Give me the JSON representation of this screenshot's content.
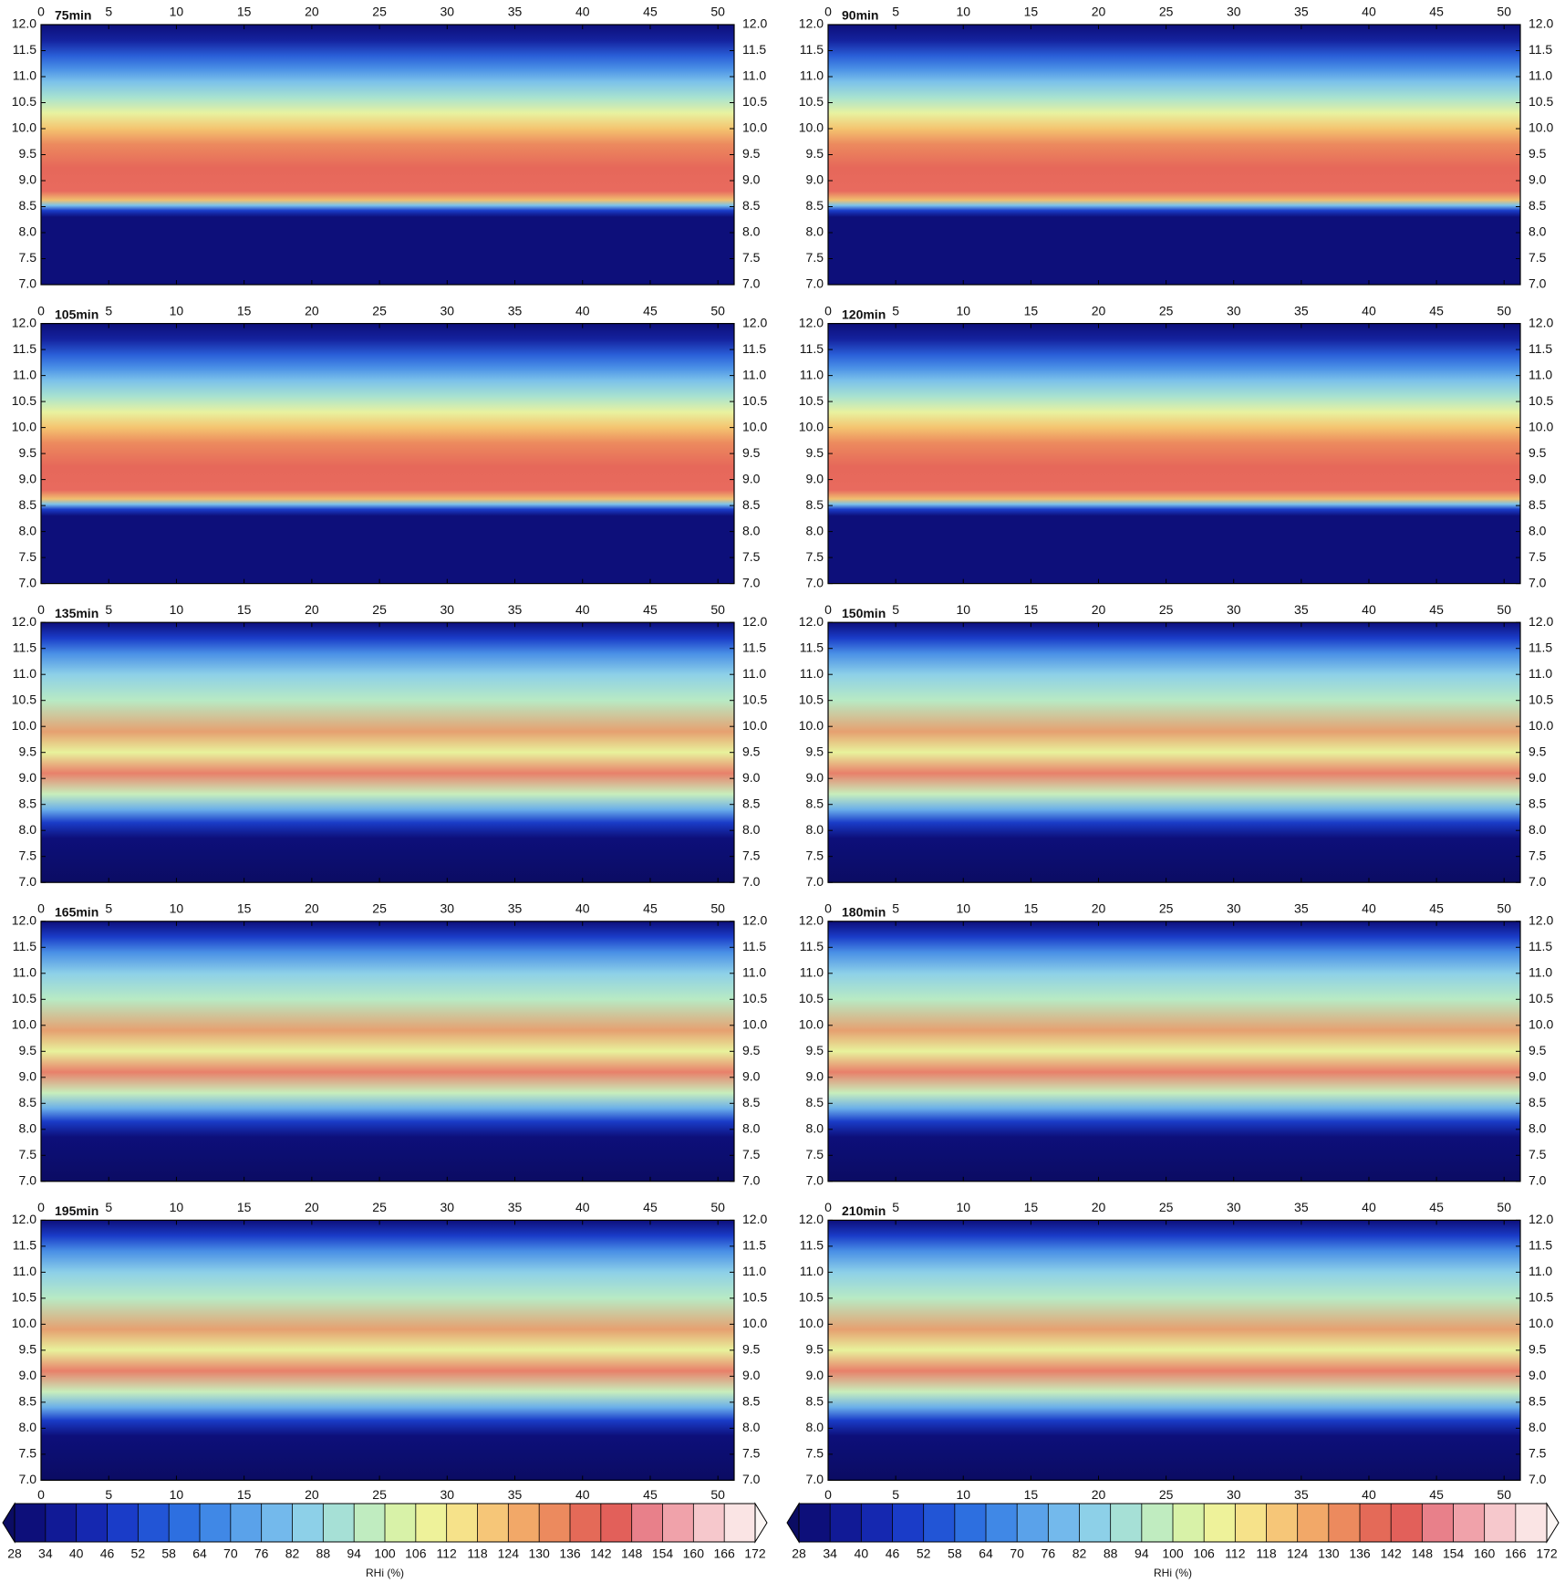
{
  "chart_data": [
    {
      "type": "contour",
      "title": "75min",
      "xlim": [
        0,
        51.2
      ],
      "ylim": [
        7,
        12
      ],
      "xticks": [
        0,
        5,
        10,
        15,
        20,
        25,
        30,
        35,
        40,
        45,
        50
      ],
      "yticks": [
        {
          "value": 7,
          "label": "7.0"
        },
        {
          "value": 7.5,
          "label": "7.5"
        },
        {
          "value": 8,
          "label": "8.0"
        },
        {
          "value": 8.5,
          "label": "8.5"
        },
        {
          "value": 9,
          "label": "9.0"
        },
        {
          "value": 9.5,
          "label": "9.5"
        },
        {
          "value": 10,
          "label": "10.0"
        },
        {
          "value": 10.5,
          "label": "10.5"
        },
        {
          "value": 11,
          "label": "11.0"
        },
        {
          "value": 11.5,
          "label": "11.5"
        },
        {
          "value": 12,
          "label": "12.0"
        }
      ]
    },
    {
      "type": "contour",
      "title": "90min",
      "xlim": [
        0,
        51.2
      ],
      "ylim": [
        7,
        12
      ],
      "xticks": [
        0,
        5,
        10,
        15,
        20,
        25,
        30,
        35,
        40,
        45,
        50
      ],
      "yticks": [
        {
          "value": 7,
          "label": "7.0"
        },
        {
          "value": 7.5,
          "label": "7.5"
        },
        {
          "value": 8,
          "label": "8.0"
        },
        {
          "value": 8.5,
          "label": "8.5"
        },
        {
          "value": 9,
          "label": "9.0"
        },
        {
          "value": 9.5,
          "label": "9.5"
        },
        {
          "value": 10,
          "label": "10.0"
        },
        {
          "value": 10.5,
          "label": "10.5"
        },
        {
          "value": 11,
          "label": "11.0"
        },
        {
          "value": 11.5,
          "label": "11.5"
        },
        {
          "value": 12,
          "label": "12.0"
        }
      ]
    },
    {
      "type": "contour",
      "title": "105min",
      "xlim": [
        0,
        51.2
      ],
      "ylim": [
        7,
        12
      ],
      "xticks": [
        0,
        5,
        10,
        15,
        20,
        25,
        30,
        35,
        40,
        45,
        50
      ],
      "yticks": [
        {
          "value": 7,
          "label": "7.0"
        },
        {
          "value": 7.5,
          "label": "7.5"
        },
        {
          "value": 8,
          "label": "8.0"
        },
        {
          "value": 8.5,
          "label": "8.5"
        },
        {
          "value": 9,
          "label": "9.0"
        },
        {
          "value": 9.5,
          "label": "9.5"
        },
        {
          "value": 10,
          "label": "10.0"
        },
        {
          "value": 10.5,
          "label": "10.5"
        },
        {
          "value": 11,
          "label": "11.0"
        },
        {
          "value": 11.5,
          "label": "11.5"
        },
        {
          "value": 12,
          "label": "12.0"
        }
      ]
    },
    {
      "type": "contour",
      "title": "120min",
      "xlim": [
        0,
        51.2
      ],
      "ylim": [
        7,
        12
      ],
      "xticks": [
        0,
        5,
        10,
        15,
        20,
        25,
        30,
        35,
        40,
        45,
        50
      ],
      "yticks": [
        {
          "value": 7,
          "label": "7.0"
        },
        {
          "value": 7.5,
          "label": "7.5"
        },
        {
          "value": 8,
          "label": "8.0"
        },
        {
          "value": 8.5,
          "label": "8.5"
        },
        {
          "value": 9,
          "label": "9.0"
        },
        {
          "value": 9.5,
          "label": "9.5"
        },
        {
          "value": 10,
          "label": "10.0"
        },
        {
          "value": 10.5,
          "label": "10.5"
        },
        {
          "value": 11,
          "label": "11.0"
        },
        {
          "value": 11.5,
          "label": "11.5"
        },
        {
          "value": 12,
          "label": "12.0"
        }
      ]
    },
    {
      "type": "contour",
      "title": "135min",
      "xlim": [
        0,
        51.2
      ],
      "ylim": [
        7,
        12
      ],
      "xticks": [
        0,
        5,
        10,
        15,
        20,
        25,
        30,
        35,
        40,
        45,
        50
      ],
      "yticks": [
        {
          "value": 7,
          "label": "7.0"
        },
        {
          "value": 7.5,
          "label": "7.5"
        },
        {
          "value": 8,
          "label": "8.0"
        },
        {
          "value": 8.5,
          "label": "8.5"
        },
        {
          "value": 9,
          "label": "9.0"
        },
        {
          "value": 9.5,
          "label": "9.5"
        },
        {
          "value": 10,
          "label": "10.0"
        },
        {
          "value": 10.5,
          "label": "10.5"
        },
        {
          "value": 11,
          "label": "11.0"
        },
        {
          "value": 11.5,
          "label": "11.5"
        },
        {
          "value": 12,
          "label": "12.0"
        }
      ]
    },
    {
      "type": "contour",
      "title": "150min",
      "xlim": [
        0,
        51.2
      ],
      "ylim": [
        7,
        12
      ],
      "xticks": [
        0,
        5,
        10,
        15,
        20,
        25,
        30,
        35,
        40,
        45,
        50
      ],
      "yticks": [
        {
          "value": 7,
          "label": "7.0"
        },
        {
          "value": 7.5,
          "label": "7.5"
        },
        {
          "value": 8,
          "label": "8.0"
        },
        {
          "value": 8.5,
          "label": "8.5"
        },
        {
          "value": 9,
          "label": "9.0"
        },
        {
          "value": 9.5,
          "label": "9.5"
        },
        {
          "value": 10,
          "label": "10.0"
        },
        {
          "value": 10.5,
          "label": "10.5"
        },
        {
          "value": 11,
          "label": "11.0"
        },
        {
          "value": 11.5,
          "label": "11.5"
        },
        {
          "value": 12,
          "label": "12.0"
        }
      ]
    },
    {
      "type": "contour",
      "title": "165min",
      "xlim": [
        0,
        51.2
      ],
      "ylim": [
        7,
        12
      ],
      "xticks": [
        0,
        5,
        10,
        15,
        20,
        25,
        30,
        35,
        40,
        45,
        50
      ],
      "yticks": [
        {
          "value": 7,
          "label": "7.0"
        },
        {
          "value": 7.5,
          "label": "7.5"
        },
        {
          "value": 8,
          "label": "8.0"
        },
        {
          "value": 8.5,
          "label": "8.5"
        },
        {
          "value": 9,
          "label": "9.0"
        },
        {
          "value": 9.5,
          "label": "9.5"
        },
        {
          "value": 10,
          "label": "10.0"
        },
        {
          "value": 10.5,
          "label": "10.5"
        },
        {
          "value": 11,
          "label": "11.0"
        },
        {
          "value": 11.5,
          "label": "11.5"
        },
        {
          "value": 12,
          "label": "12.0"
        }
      ]
    },
    {
      "type": "contour",
      "title": "180min",
      "xlim": [
        0,
        51.2
      ],
      "ylim": [
        7,
        12
      ],
      "xticks": [
        0,
        5,
        10,
        15,
        20,
        25,
        30,
        35,
        40,
        45,
        50
      ],
      "yticks": [
        {
          "value": 7,
          "label": "7.0"
        },
        {
          "value": 7.5,
          "label": "7.5"
        },
        {
          "value": 8,
          "label": "8.0"
        },
        {
          "value": 8.5,
          "label": "8.5"
        },
        {
          "value": 9,
          "label": "9.0"
        },
        {
          "value": 9.5,
          "label": "9.5"
        },
        {
          "value": 10,
          "label": "10.0"
        },
        {
          "value": 10.5,
          "label": "10.5"
        },
        {
          "value": 11,
          "label": "11.0"
        },
        {
          "value": 11.5,
          "label": "11.5"
        },
        {
          "value": 12,
          "label": "12.0"
        }
      ]
    },
    {
      "type": "contour",
      "title": "195min",
      "xlim": [
        0,
        51.2
      ],
      "ylim": [
        7,
        12
      ],
      "xticks": [
        0,
        5,
        10,
        15,
        20,
        25,
        30,
        35,
        40,
        45,
        50
      ],
      "yticks": [
        {
          "value": 7,
          "label": "7.0"
        },
        {
          "value": 7.5,
          "label": "7.5"
        },
        {
          "value": 8,
          "label": "8.0"
        },
        {
          "value": 8.5,
          "label": "8.5"
        },
        {
          "value": 9,
          "label": "9.0"
        },
        {
          "value": 9.5,
          "label": "9.5"
        },
        {
          "value": 10,
          "label": "10.0"
        },
        {
          "value": 10.5,
          "label": "10.5"
        },
        {
          "value": 11,
          "label": "11.0"
        },
        {
          "value": 11.5,
          "label": "11.5"
        },
        {
          "value": 12,
          "label": "12.0"
        }
      ]
    },
    {
      "type": "contour",
      "title": "210min",
      "xlim": [
        0,
        51.2
      ],
      "ylim": [
        7,
        12
      ],
      "xticks": [
        0,
        5,
        10,
        15,
        20,
        25,
        30,
        35,
        40,
        45,
        50
      ],
      "yticks": [
        {
          "value": 7,
          "label": "7.0"
        },
        {
          "value": 7.5,
          "label": "7.5"
        },
        {
          "value": 8,
          "label": "8.0"
        },
        {
          "value": 8.5,
          "label": "8.5"
        },
        {
          "value": 9,
          "label": "9.0"
        },
        {
          "value": 9.5,
          "label": "9.5"
        },
        {
          "value": 10,
          "label": "10.0"
        },
        {
          "value": 10.5,
          "label": "10.5"
        },
        {
          "value": 11,
          "label": "11.0"
        },
        {
          "value": 11.5,
          "label": "11.5"
        },
        {
          "value": 12,
          "label": "12.0"
        }
      ]
    }
  ],
  "colorbar": {
    "label": "RHi (%)",
    "extend": "both",
    "levels": [
      28,
      34,
      40,
      46,
      52,
      58,
      64,
      70,
      76,
      82,
      88,
      94,
      100,
      106,
      112,
      118,
      124,
      130,
      136,
      142,
      148,
      154,
      160,
      166,
      172
    ],
    "colors": [
      "#0b0c63",
      "#0d0f7a",
      "#111a96",
      "#1528b0",
      "#1a3cc8",
      "#2255d6",
      "#2d6fe0",
      "#4088e6",
      "#5aa2ea",
      "#73b9ec",
      "#8dd0e8",
      "#a6e0d6",
      "#c0ecc0",
      "#d8f2a8",
      "#eef29a",
      "#f6e28a",
      "#f6c678",
      "#f2a868",
      "#ec8a5e",
      "#e46a58",
      "#e2605a",
      "#e8808a",
      "#f0a2aa",
      "#f6c8cc",
      "#fae4e4",
      "#fcf6f4"
    ]
  }
}
